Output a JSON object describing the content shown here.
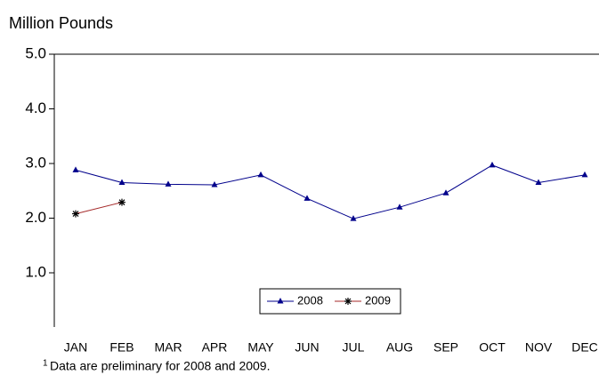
{
  "chart_data": {
    "type": "line",
    "y_label": "Million Pounds",
    "categories": [
      "JAN",
      "FEB",
      "MAR",
      "APR",
      "MAY",
      "JUN",
      "JUL",
      "AUG",
      "SEP",
      "OCT",
      "NOV",
      "DEC"
    ],
    "series": [
      {
        "name": "2008",
        "color": "#00008b",
        "marker": "triangle",
        "marker_color": "#00008b",
        "values": [
          2.88,
          2.65,
          2.62,
          2.61,
          2.79,
          2.36,
          1.99,
          2.2,
          2.46,
          2.97,
          2.65,
          2.79
        ]
      },
      {
        "name": "2009",
        "color": "#a52a2a",
        "marker": "asterisk",
        "marker_color": "#000000",
        "values": [
          2.08,
          2.29,
          null,
          null,
          null,
          null,
          null,
          null,
          null,
          null,
          null,
          null
        ]
      }
    ],
    "ylim": [
      0,
      5
    ],
    "yticks": [
      {
        "value": 1,
        "label": "1.0"
      },
      {
        "value": 2,
        "label": "2.0"
      },
      {
        "value": 3,
        "label": "3.0"
      },
      {
        "value": 4,
        "label": "4.0"
      },
      {
        "value": 5,
        "label": "5.0"
      }
    ],
    "legend": "bottom",
    "footnote_marker": "1",
    "footnote": "Data are preliminary for 2008 and 2009."
  }
}
